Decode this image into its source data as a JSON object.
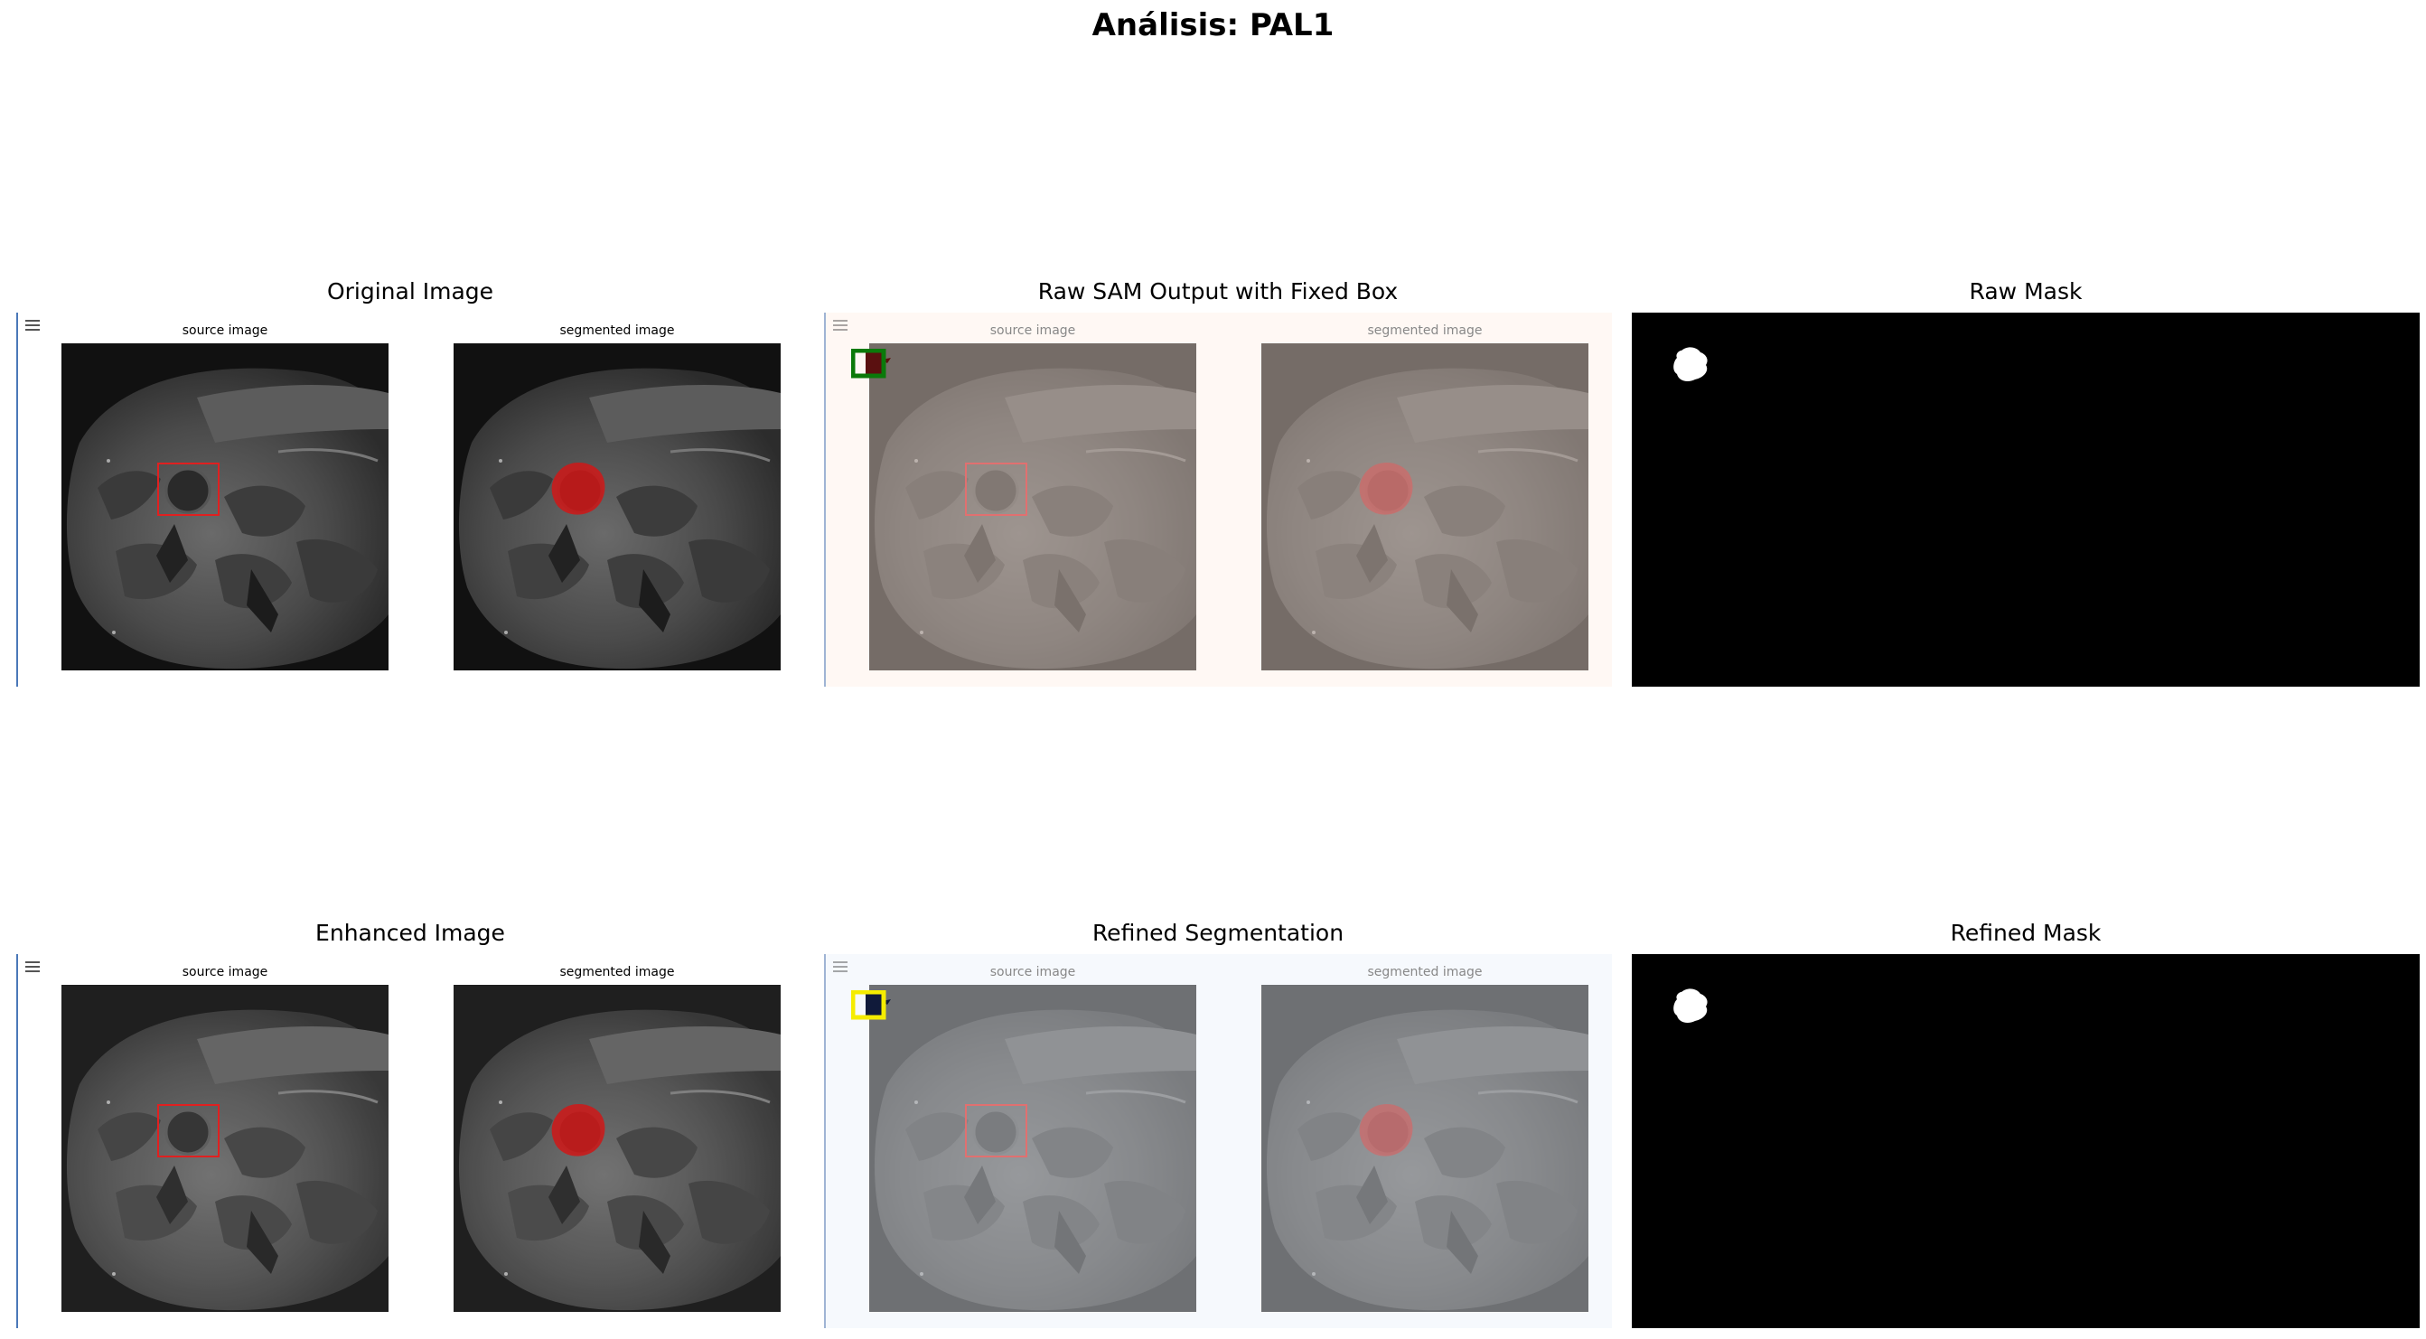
{
  "figure": {
    "title": "Análisis: PAL1"
  },
  "panels": [
    {
      "id": "original",
      "title": "Original Image",
      "source_caption": "source image",
      "segmented_caption": "segmented image",
      "tint": "none"
    },
    {
      "id": "raw-sam",
      "title": "Raw SAM Output with Fixed Box",
      "source_caption": "source image",
      "segmented_caption": "segmented image",
      "tint": "warm",
      "box_color": "#0a7a0a"
    },
    {
      "id": "raw-mask",
      "title": "Raw Mask"
    },
    {
      "id": "enhanced",
      "title": "Enhanced Image",
      "source_caption": "source image",
      "segmented_caption": "segmented image",
      "tint": "none"
    },
    {
      "id": "refined-seg",
      "title": "Refined Segmentation",
      "source_caption": "source image",
      "segmented_caption": "segmented image",
      "tint": "cool",
      "box_color": "#f5ec00"
    },
    {
      "id": "refined-mask",
      "title": "Refined Mask"
    }
  ],
  "colors": {
    "lesion_red": "#d01818",
    "bbox_red": "#e02020",
    "mask_bg": "#000000",
    "mask_fg": "#ffffff",
    "accent_line": "#4a78b8"
  },
  "icons": {
    "toolbar": "hamburger-icon"
  }
}
